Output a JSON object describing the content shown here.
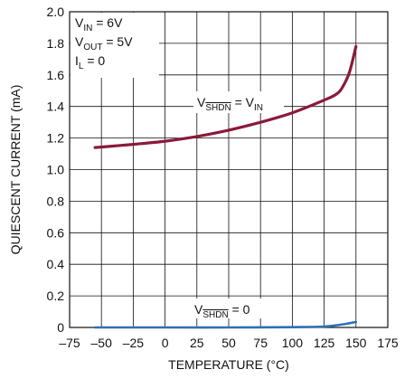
{
  "chart_data": {
    "type": "line",
    "xlabel": "TEMPERATURE (°C)",
    "ylabel": "QUIESCENT CURRENT (mA)",
    "xlim": [
      -75,
      175
    ],
    "ylim": [
      0,
      2.0
    ],
    "x_ticks": [
      "–75",
      "–50",
      "–25",
      "0",
      "25",
      "50",
      "75",
      "100",
      "125",
      "150",
      "175"
    ],
    "y_ticks": [
      "0",
      "0.2",
      "0.4",
      "0.6",
      "0.8",
      "1.0",
      "1.2",
      "1.4",
      "1.6",
      "1.8",
      "2.0"
    ],
    "grid": true,
    "conditions": {
      "vin": {
        "main": "V",
        "sub": "IN",
        "value": " = 6V"
      },
      "vout": {
        "main": "V",
        "sub": "OUT",
        "value": " = 5V"
      },
      "il": {
        "main": "I",
        "sub": "L",
        "value": " = 0"
      }
    },
    "series": [
      {
        "label": {
          "v": "V",
          "shdn": "SHDN",
          "eq": " = V",
          "rhs_sub": "IN"
        },
        "color": "#8b1a3a",
        "x": [
          -55,
          -25,
          0,
          25,
          50,
          75,
          100,
          125,
          135,
          140,
          145,
          150
        ],
        "y": [
          1.14,
          1.16,
          1.18,
          1.21,
          1.25,
          1.3,
          1.36,
          1.44,
          1.48,
          1.53,
          1.62,
          1.78
        ]
      },
      {
        "label": {
          "v": "V",
          "shdn": "SHDN",
          "eq": " = 0",
          "rhs_sub": ""
        },
        "color": "#2f6fb3",
        "x": [
          -55,
          0,
          50,
          100,
          125,
          140,
          150
        ],
        "y": [
          0.0,
          0.0,
          0.0,
          0.002,
          0.006,
          0.02,
          0.035
        ]
      }
    ]
  }
}
